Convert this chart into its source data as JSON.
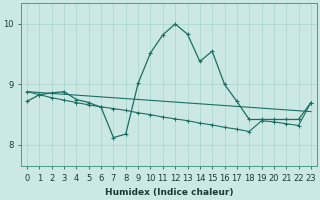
{
  "xlabel": "Humidex (Indice chaleur)",
  "bg_color": "#cce8e4",
  "line_color": "#1a6e62",
  "grid_color": "#aad4ce",
  "xlim": [
    -0.5,
    23.5
  ],
  "ylim": [
    7.65,
    10.35
  ],
  "yticks": [
    8,
    9,
    10
  ],
  "xticks": [
    0,
    1,
    2,
    3,
    4,
    5,
    6,
    7,
    8,
    9,
    10,
    11,
    12,
    13,
    14,
    15,
    16,
    17,
    18,
    19,
    20,
    21,
    22,
    23
  ],
  "series1_x": [
    0,
    1,
    2,
    3,
    4,
    5,
    6,
    7,
    8,
    9,
    10,
    11,
    12,
    13,
    14,
    15,
    16,
    17,
    18,
    19,
    20,
    21,
    22,
    23
  ],
  "series1_y": [
    8.72,
    8.83,
    8.86,
    8.88,
    8.75,
    8.7,
    8.62,
    8.12,
    8.18,
    9.02,
    9.52,
    9.82,
    10.0,
    9.83,
    9.38,
    9.55,
    9.0,
    8.72,
    8.42,
    8.42,
    8.42,
    8.42,
    8.42,
    8.7
  ],
  "series2_x": [
    0,
    1,
    2,
    3,
    4,
    5,
    6,
    7,
    8,
    9,
    10,
    11,
    12,
    13,
    14,
    15,
    16,
    17,
    18,
    19,
    20,
    21,
    22,
    23
  ],
  "series2_y": [
    8.88,
    8.83,
    8.78,
    8.74,
    8.7,
    8.66,
    8.63,
    8.6,
    8.57,
    8.53,
    8.5,
    8.46,
    8.43,
    8.4,
    8.36,
    8.33,
    8.29,
    8.26,
    8.22,
    8.4,
    8.38,
    8.35,
    8.32,
    8.7
  ],
  "series3_x": [
    0,
    23
  ],
  "series3_y": [
    8.88,
    8.55
  ]
}
